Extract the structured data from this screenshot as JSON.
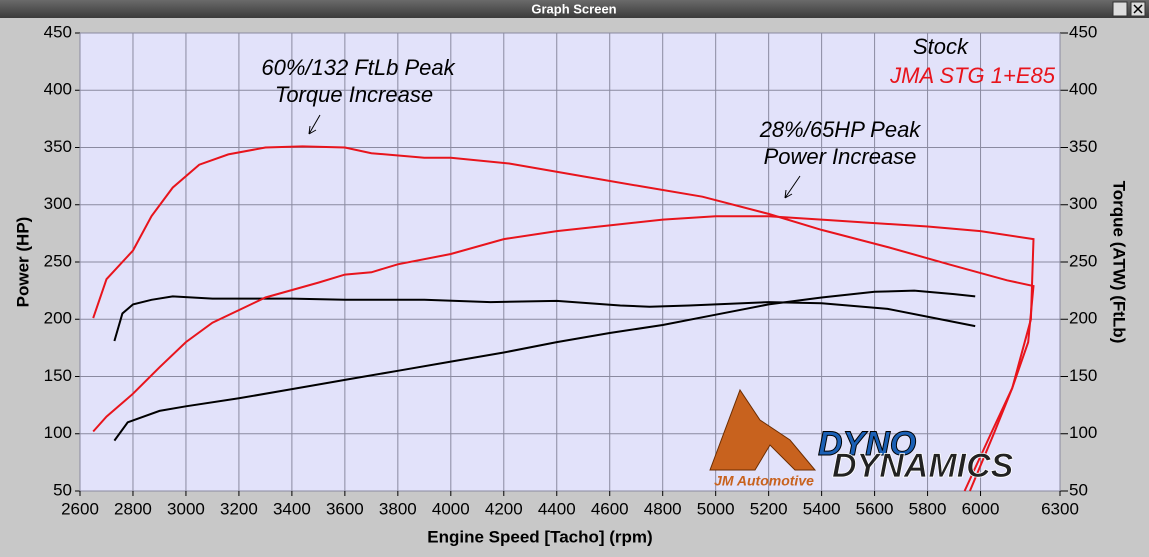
{
  "window_title": "Graph Screen",
  "chart_data": {
    "type": "line",
    "xlabel": "Engine Speed [Tacho] (rpm)",
    "ylabel": "Power (HP)",
    "y2label": "Torque (ATW) (FtLb)",
    "xlim": [
      2600,
      6300
    ],
    "xticks": [
      2600,
      2800,
      3000,
      3200,
      3400,
      3600,
      3800,
      4000,
      4200,
      4400,
      4600,
      4800,
      5000,
      5200,
      5400,
      5600,
      5800,
      6000,
      6300
    ],
    "ylim": [
      50,
      450
    ],
    "yticks": [
      50,
      100,
      150,
      200,
      250,
      300,
      350,
      400,
      450
    ],
    "y2lim": [
      50,
      450
    ],
    "y2ticks": [
      50,
      100,
      150,
      200,
      250,
      300,
      350,
      400,
      450
    ],
    "grid": true,
    "legend": "top-right",
    "annotations": [
      "60%/132 FtLb Peak",
      "Torque Increase",
      "28%/65HP Peak",
      "Power Increase"
    ],
    "logo_texts": [
      "JM Automotive",
      "DYNO",
      "DYNAMICS"
    ],
    "series": [
      {
        "name": "Stock",
        "color": "#000000",
        "axis": "y2",
        "x": [
          2730,
          2760,
          2800,
          2870,
          2950,
          3100,
          3400,
          3600,
          3900,
          4150,
          4400,
          4640,
          4750,
          4900,
          5200,
          5400,
          5650,
          5870,
          5980
        ],
        "values": [
          181,
          205,
          213,
          217,
          220,
          218,
          218,
          217,
          217,
          215,
          216,
          212,
          211,
          212,
          215,
          214,
          209,
          199,
          194
        ]
      },
      {
        "name": null,
        "color": "#000000",
        "x": [
          2730,
          2780,
          2900,
          3000,
          3200,
          3400,
          3600,
          3800,
          4000,
          4200,
          4400,
          4600,
          4800,
          5000,
          5200,
          5400,
          5600,
          5750,
          5900,
          5980
        ],
        "values": [
          94,
          110,
          120,
          124,
          131,
          139,
          147,
          155,
          163,
          171,
          180,
          188,
          195,
          204,
          213,
          219,
          224,
          225,
          222,
          220
        ]
      },
      {
        "name": "JMA STG 1+E85",
        "color": "#e8141c",
        "axis": "y2",
        "x": [
          2650,
          2700,
          2800,
          2870,
          2950,
          3050,
          3160,
          3300,
          3440,
          3600,
          3700,
          3900,
          4000,
          4220,
          4470,
          4720,
          4950,
          5200,
          5400,
          5650,
          5880,
          6100,
          6200,
          6180,
          6120,
          6043,
          5940
        ],
        "values": [
          201,
          235,
          260,
          290,
          315,
          335,
          344,
          350,
          351,
          350,
          345,
          341,
          341,
          336,
          326,
          316,
          307,
          292,
          278,
          263,
          248,
          234,
          229,
          180,
          140,
          102,
          50
        ]
      },
      {
        "name": null,
        "color": "#e8141c",
        "x": [
          2650,
          2700,
          2800,
          2900,
          3000,
          3100,
          3200,
          3300,
          3500,
          3600,
          3700,
          3800,
          4000,
          4200,
          4400,
          4600,
          4800,
          5000,
          5200,
          5400,
          5600,
          5800,
          6000,
          6200,
          6190,
          6120,
          6050,
          5960
        ],
        "values": [
          102,
          115,
          135,
          158,
          180,
          197,
          208,
          219,
          232,
          239,
          241,
          248,
          257,
          270,
          277,
          282,
          287,
          290,
          290,
          287,
          284,
          281,
          277,
          270,
          200,
          140,
          100,
          50
        ]
      }
    ]
  }
}
